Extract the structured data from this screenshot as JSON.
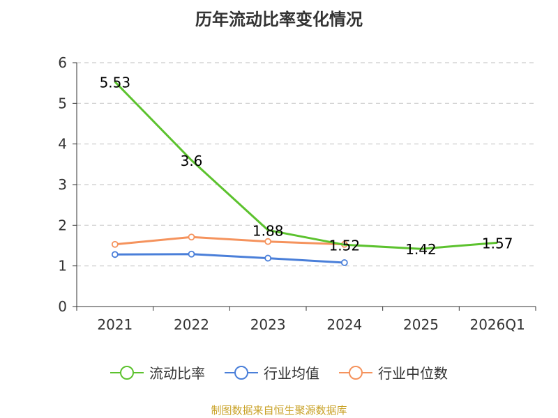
{
  "chart_data": {
    "type": "line",
    "title": "历年流动比率变化情况",
    "categories": [
      "2021",
      "2022",
      "2023",
      "2024",
      "2025",
      "2026Q1"
    ],
    "ylim": [
      0,
      6
    ],
    "yticks": [
      "0",
      "1",
      "2",
      "3",
      "4",
      "5",
      "6"
    ],
    "grid": true,
    "legend_position": "bottom",
    "series": [
      {
        "name": "流动比率",
        "color": "#5cc22e",
        "values": [
          5.53,
          3.6,
          1.88,
          1.52,
          1.42,
          1.57
        ],
        "labels": [
          "5.53",
          "3.6",
          "1.88",
          "1.52",
          "1.42",
          "1.57"
        ]
      },
      {
        "name": "行业均值",
        "color": "#4a7fd9",
        "values": [
          1.28,
          1.29,
          1.19,
          1.08,
          null,
          null
        ]
      },
      {
        "name": "行业中位数",
        "color": "#f5935d",
        "values": [
          1.53,
          1.71,
          1.6,
          1.53,
          null,
          null
        ]
      }
    ]
  },
  "footer": {
    "source": "制图数据来自恒生聚源数据库"
  }
}
